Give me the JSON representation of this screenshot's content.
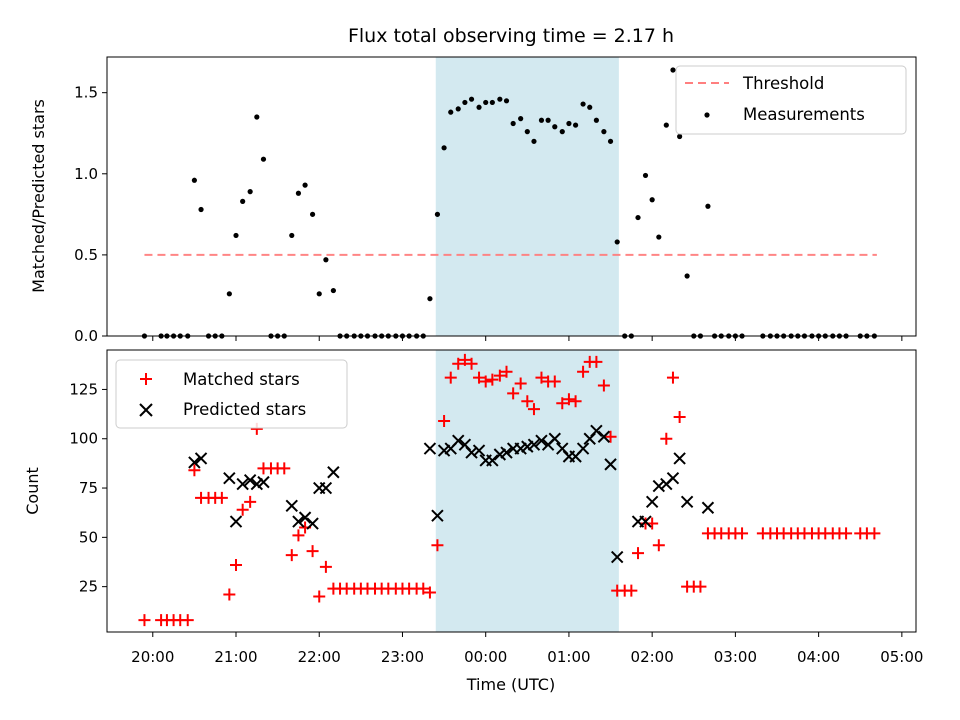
{
  "chart_data": [
    {
      "type": "scatter",
      "title": "Flux total observing time = 2.17 h",
      "xlabel": "",
      "ylabel": "Matched/Predicted stars",
      "x_unit": "hours since 20:00 UTC",
      "xlim": [
        -0.55,
        9.17
      ],
      "ylim": [
        0,
        1.72
      ],
      "x_tick_values": [
        0,
        1,
        2,
        3,
        4,
        5,
        6,
        7,
        8,
        9
      ],
      "y_ticks": [
        0.0,
        0.5,
        1.0,
        1.5
      ],
      "y_tick_labels": [
        "0.0",
        "0.5",
        "1.0",
        "1.5"
      ],
      "legend_position": "top-right",
      "shaded_span": [
        3.4,
        5.6
      ],
      "shade_color": "#d3e9f0",
      "threshold": {
        "name": "Threshold",
        "value": 0.5,
        "x_range": [
          -0.1,
          8.7
        ],
        "color": "#ff7f7f"
      },
      "series": [
        {
          "name": "Measurements",
          "color": "#000000",
          "points": [
            [
              -0.1,
              0
            ],
            [
              0.1,
              0
            ],
            [
              0.17,
              0
            ],
            [
              0.25,
              0
            ],
            [
              0.33,
              0
            ],
            [
              0.42,
              0
            ],
            [
              0.5,
              0.96
            ],
            [
              0.58,
              0.78
            ],
            [
              0.67,
              0
            ],
            [
              0.75,
              0
            ],
            [
              0.83,
              0
            ],
            [
              0.92,
              0.26
            ],
            [
              1.0,
              0.62
            ],
            [
              1.08,
              0.83
            ],
            [
              1.17,
              0.89
            ],
            [
              1.25,
              1.35
            ],
            [
              1.33,
              1.09
            ],
            [
              1.42,
              0
            ],
            [
              1.5,
              0
            ],
            [
              1.58,
              0
            ],
            [
              1.67,
              0.62
            ],
            [
              1.75,
              0.88
            ],
            [
              1.83,
              0.93
            ],
            [
              1.92,
              0.75
            ],
            [
              2.0,
              0.26
            ],
            [
              2.08,
              0.47
            ],
            [
              2.17,
              0.28
            ],
            [
              2.25,
              0
            ],
            [
              2.33,
              0
            ],
            [
              2.42,
              0
            ],
            [
              2.5,
              0
            ],
            [
              2.58,
              0
            ],
            [
              2.67,
              0
            ],
            [
              2.75,
              0
            ],
            [
              2.83,
              0
            ],
            [
              2.92,
              0
            ],
            [
              3.0,
              0
            ],
            [
              3.08,
              0
            ],
            [
              3.17,
              0
            ],
            [
              3.25,
              0
            ],
            [
              3.33,
              0.23
            ],
            [
              3.42,
              0.75
            ],
            [
              3.5,
              1.16
            ],
            [
              3.58,
              1.38
            ],
            [
              3.67,
              1.4
            ],
            [
              3.75,
              1.44
            ],
            [
              3.83,
              1.46
            ],
            [
              3.92,
              1.41
            ],
            [
              4.0,
              1.44
            ],
            [
              4.08,
              1.44
            ],
            [
              4.17,
              1.46
            ],
            [
              4.25,
              1.45
            ],
            [
              4.33,
              1.31
            ],
            [
              4.42,
              1.34
            ],
            [
              4.5,
              1.26
            ],
            [
              4.58,
              1.2
            ],
            [
              4.67,
              1.33
            ],
            [
              4.75,
              1.33
            ],
            [
              4.83,
              1.29
            ],
            [
              4.92,
              1.26
            ],
            [
              5.0,
              1.31
            ],
            [
              5.08,
              1.3
            ],
            [
              5.17,
              1.43
            ],
            [
              5.25,
              1.41
            ],
            [
              5.33,
              1.33
            ],
            [
              5.42,
              1.26
            ],
            [
              5.5,
              1.2
            ],
            [
              5.58,
              0.58
            ],
            [
              5.67,
              0
            ],
            [
              5.75,
              0
            ],
            [
              5.83,
              0.73
            ],
            [
              5.92,
              0.99
            ],
            [
              6.0,
              0.84
            ],
            [
              6.08,
              0.61
            ],
            [
              6.17,
              1.3
            ],
            [
              6.25,
              1.64
            ],
            [
              6.33,
              1.23
            ],
            [
              6.42,
              0.37
            ],
            [
              6.5,
              0
            ],
            [
              6.58,
              0
            ],
            [
              6.67,
              0.8
            ],
            [
              6.75,
              0
            ],
            [
              6.83,
              0
            ],
            [
              6.92,
              0
            ],
            [
              7.0,
              0
            ],
            [
              7.08,
              0
            ],
            [
              7.33,
              0
            ],
            [
              7.42,
              0
            ],
            [
              7.5,
              0
            ],
            [
              7.58,
              0
            ],
            [
              7.67,
              0
            ],
            [
              7.75,
              0
            ],
            [
              7.83,
              0
            ],
            [
              7.92,
              0
            ],
            [
              8.0,
              0
            ],
            [
              8.08,
              0
            ],
            [
              8.17,
              0
            ],
            [
              8.25,
              0
            ],
            [
              8.33,
              0
            ],
            [
              8.5,
              0
            ],
            [
              8.58,
              0
            ],
            [
              8.67,
              0
            ]
          ]
        }
      ]
    },
    {
      "type": "scatter",
      "title": "",
      "xlabel": "Time (UTC)",
      "ylabel": "Count",
      "x_unit": "hours since 20:00 UTC",
      "xlim": [
        -0.55,
        9.17
      ],
      "ylim": [
        2,
        145
      ],
      "x_tick_values": [
        0,
        1,
        2,
        3,
        4,
        5,
        6,
        7,
        8,
        9
      ],
      "x_tick_labels": [
        "20:00",
        "21:00",
        "22:00",
        "23:00",
        "00:00",
        "01:00",
        "02:00",
        "03:00",
        "04:00",
        "05:00"
      ],
      "y_ticks": [
        25,
        50,
        75,
        100,
        125
      ],
      "y_tick_labels": [
        "25",
        "50",
        "75",
        "100",
        "125"
      ],
      "legend_position": "top-left",
      "shaded_span": [
        3.4,
        5.6
      ],
      "shade_color": "#d3e9f0",
      "series": [
        {
          "name": "Matched stars",
          "marker": "plus",
          "color": "#ff0000",
          "points": [
            [
              -0.1,
              8
            ],
            [
              0.1,
              8
            ],
            [
              0.17,
              8
            ],
            [
              0.25,
              8
            ],
            [
              0.33,
              8
            ],
            [
              0.42,
              8
            ],
            [
              0.5,
              84
            ],
            [
              0.58,
              70
            ],
            [
              0.67,
              70
            ],
            [
              0.75,
              70
            ],
            [
              0.83,
              70
            ],
            [
              0.92,
              21
            ],
            [
              1.0,
              36
            ],
            [
              1.08,
              64
            ],
            [
              1.17,
              68
            ],
            [
              1.25,
              105
            ],
            [
              1.33,
              85
            ],
            [
              1.42,
              85
            ],
            [
              1.5,
              85
            ],
            [
              1.58,
              85
            ],
            [
              1.67,
              41
            ],
            [
              1.75,
              51
            ],
            [
              1.83,
              55
            ],
            [
              1.92,
              43
            ],
            [
              2.0,
              20
            ],
            [
              2.08,
              35
            ],
            [
              2.17,
              24
            ],
            [
              2.25,
              24
            ],
            [
              2.33,
              24
            ],
            [
              2.42,
              24
            ],
            [
              2.5,
              24
            ],
            [
              2.58,
              24
            ],
            [
              2.67,
              24
            ],
            [
              2.75,
              24
            ],
            [
              2.83,
              24
            ],
            [
              2.92,
              24
            ],
            [
              3.0,
              24
            ],
            [
              3.08,
              24
            ],
            [
              3.17,
              24
            ],
            [
              3.25,
              24
            ],
            [
              3.33,
              22
            ],
            [
              3.42,
              46
            ],
            [
              3.5,
              109
            ],
            [
              3.58,
              131
            ],
            [
              3.67,
              138
            ],
            [
              3.75,
              140
            ],
            [
              3.83,
              138
            ],
            [
              3.92,
              131
            ],
            [
              4.0,
              129
            ],
            [
              4.08,
              130
            ],
            [
              4.17,
              132
            ],
            [
              4.25,
              134
            ],
            [
              4.33,
              123
            ],
            [
              4.42,
              128
            ],
            [
              4.5,
              119
            ],
            [
              4.58,
              115
            ],
            [
              4.67,
              131
            ],
            [
              4.75,
              129
            ],
            [
              4.83,
              129
            ],
            [
              4.92,
              118
            ],
            [
              5.0,
              120
            ],
            [
              5.08,
              119
            ],
            [
              5.17,
              134
            ],
            [
              5.25,
              139
            ],
            [
              5.33,
              139
            ],
            [
              5.42,
              127
            ],
            [
              5.5,
              101
            ],
            [
              5.58,
              23
            ],
            [
              5.67,
              23
            ],
            [
              5.75,
              23
            ],
            [
              5.83,
              42
            ],
            [
              5.92,
              57
            ],
            [
              6.0,
              57
            ],
            [
              6.08,
              46
            ],
            [
              6.17,
              100
            ],
            [
              6.25,
              131
            ],
            [
              6.33,
              111
            ],
            [
              6.42,
              25
            ],
            [
              6.5,
              25
            ],
            [
              6.58,
              25
            ],
            [
              6.67,
              52
            ],
            [
              6.75,
              52
            ],
            [
              6.83,
              52
            ],
            [
              6.92,
              52
            ],
            [
              7.0,
              52
            ],
            [
              7.08,
              52
            ],
            [
              7.33,
              52
            ],
            [
              7.42,
              52
            ],
            [
              7.5,
              52
            ],
            [
              7.58,
              52
            ],
            [
              7.67,
              52
            ],
            [
              7.75,
              52
            ],
            [
              7.83,
              52
            ],
            [
              7.92,
              52
            ],
            [
              8.0,
              52
            ],
            [
              8.08,
              52
            ],
            [
              8.17,
              52
            ],
            [
              8.25,
              52
            ],
            [
              8.33,
              52
            ],
            [
              8.5,
              52
            ],
            [
              8.58,
              52
            ],
            [
              8.67,
              52
            ]
          ]
        },
        {
          "name": "Predicted stars",
          "marker": "x",
          "color": "#000000",
          "points": [
            [
              0.5,
              88
            ],
            [
              0.58,
              90
            ],
            [
              0.92,
              80
            ],
            [
              1.0,
              58
            ],
            [
              1.08,
              77
            ],
            [
              1.17,
              79
            ],
            [
              1.25,
              77
            ],
            [
              1.33,
              78
            ],
            [
              1.67,
              66
            ],
            [
              1.75,
              58
            ],
            [
              1.83,
              60
            ],
            [
              1.92,
              57
            ],
            [
              2.0,
              75
            ],
            [
              2.08,
              75
            ],
            [
              2.17,
              83
            ],
            [
              3.33,
              95
            ],
            [
              3.42,
              61
            ],
            [
              3.5,
              94
            ],
            [
              3.58,
              95
            ],
            [
              3.67,
              99
            ],
            [
              3.75,
              97
            ],
            [
              3.83,
              93
            ],
            [
              3.92,
              94
            ],
            [
              4.0,
              89
            ],
            [
              4.08,
              89
            ],
            [
              4.17,
              92
            ],
            [
              4.25,
              93
            ],
            [
              4.33,
              95
            ],
            [
              4.42,
              95
            ],
            [
              4.5,
              96
            ],
            [
              4.58,
              97
            ],
            [
              4.67,
              99
            ],
            [
              4.75,
              97
            ],
            [
              4.83,
              100
            ],
            [
              4.92,
              95
            ],
            [
              5.0,
              91
            ],
            [
              5.08,
              91
            ],
            [
              5.17,
              95
            ],
            [
              5.25,
              100
            ],
            [
              5.33,
              104
            ],
            [
              5.42,
              101
            ],
            [
              5.5,
              87
            ],
            [
              5.58,
              40
            ],
            [
              5.83,
              58
            ],
            [
              5.92,
              58
            ],
            [
              6.0,
              68
            ],
            [
              6.08,
              76
            ],
            [
              6.17,
              77
            ],
            [
              6.25,
              80
            ],
            [
              6.33,
              90
            ],
            [
              6.42,
              68
            ],
            [
              6.67,
              65
            ]
          ]
        }
      ]
    }
  ]
}
